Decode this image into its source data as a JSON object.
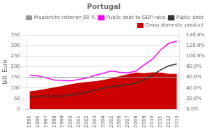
{
  "chart_data": {
    "type": "line",
    "title": "Portugal",
    "x": [
      1995,
      1996,
      1997,
      1998,
      1999,
      2000,
      2001,
      2002,
      2003,
      2004,
      2005,
      2006,
      2007,
      2008,
      2009,
      2010,
      2011,
      2012,
      2013
    ],
    "xlim": [
      1994.7,
      2013.3
    ],
    "xticks": [
      1995,
      1996,
      1997,
      1998,
      1999,
      2000,
      2001,
      2002,
      2003,
      2004,
      2005,
      2006,
      2007,
      2008,
      2009,
      2010,
      2011,
      2012,
      2013
    ],
    "ylabel": "bill. Euro",
    "ylim": [
      0,
      350
    ],
    "yticks": [
      0,
      50,
      100,
      150,
      200,
      250,
      300,
      350
    ],
    "y2lim": [
      0,
      140
    ],
    "y2ticks": [
      {
        "value": 0,
        "label": "0,0%"
      },
      {
        "value": 20,
        "label": "20,0%"
      },
      {
        "value": 40,
        "label": "40,0%"
      },
      {
        "value": 60,
        "label": "60,0%"
      },
      {
        "value": 80,
        "label": "80,0%"
      },
      {
        "value": 100,
        "label": "100,0%"
      },
      {
        "value": 120,
        "label": "120,0%"
      },
      {
        "value": 140,
        "label": "140,0%"
      }
    ],
    "grid": true,
    "legend": "upper right",
    "series": [
      {
        "name": "Gross domestic product",
        "type": "area",
        "color": "#cc0000",
        "values": [
          82,
          87,
          94,
          101,
          108,
          116,
          122,
          127,
          130,
          136,
          144,
          154,
          163,
          171,
          168,
          172,
          171,
          165,
          165
        ]
      },
      {
        "name": "Public debt",
        "type": "line",
        "color": "#333333",
        "values": [
          58,
          62,
          62,
          62,
          62,
          66,
          72,
          80,
          90,
          99,
          107,
          110,
          115,
          123,
          140,
          160,
          185,
          204,
          213
        ]
      },
      {
        "name": "Public debt-to-GDP-ratio",
        "type": "line",
        "color": "#ff00ff",
        "axis": "y2",
        "values": [
          64.3,
          62.8,
          59.1,
          55.0,
          54.3,
          53.4,
          55.9,
          58.8,
          63.9,
          67.7,
          72.1,
          69.4,
          68.4,
          71.7,
          83.7,
          94.0,
          111.4,
          124.1,
          128.0
        ]
      },
      {
        "name": "Maastricht criterion 60 %",
        "type": "reference_line",
        "color": "#999999",
        "axis": "y2",
        "value": 60.0
      }
    ]
  }
}
